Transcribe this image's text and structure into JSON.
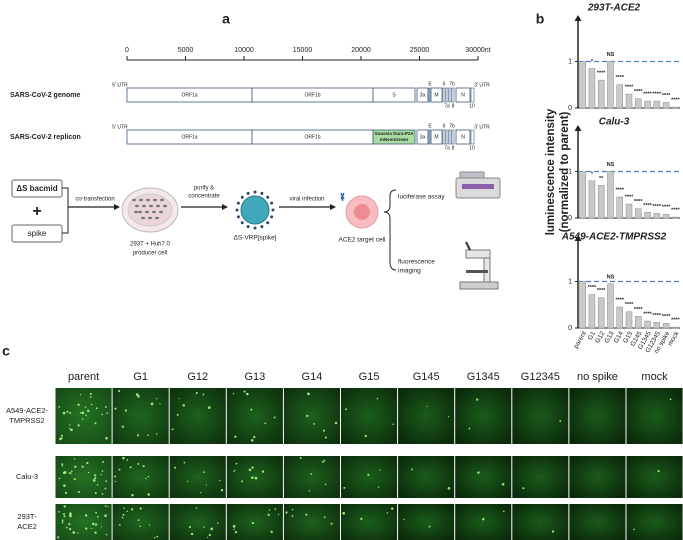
{
  "panel_labels": [
    "a",
    "b",
    "c"
  ],
  "genome": {
    "xlim": [
      0,
      30000
    ],
    "xticks": [
      0,
      5000,
      10000,
      15000,
      20000,
      25000,
      {
        "value": 30000,
        "label": "30000nt"
      }
    ],
    "utr5": "5' UTR",
    "utr3": "3' UTR",
    "rows": [
      {
        "label": "SARS-CoV-2 genome",
        "segments": [
          "ORF1a",
          "ORF1b",
          "S",
          "3a",
          "M",
          "N"
        ],
        "above": [
          "E",
          "6",
          "7b"
        ],
        "below": [
          "7a",
          "8",
          "10"
        ]
      },
      {
        "label": "SARS-CoV-2 replicon",
        "segments": [
          "ORF1a",
          "ORF1b",
          [
            "Gaussia Dura-P2A",
            "mNeonGreen"
          ],
          "3a",
          "M",
          "N"
        ],
        "above": [
          "E",
          "6",
          "7b"
        ],
        "below": [
          "7a",
          "8",
          "10"
        ]
      }
    ]
  },
  "workflow": {
    "bacmid": "ΔS bacmid",
    "plus": "+",
    "spike": "spike",
    "step1": "co-transfection",
    "producer": [
      "293T + Huh7.0",
      "producer cell"
    ],
    "step2": [
      "purify &",
      "concentrate"
    ],
    "vrp": "ΔS-VRP[spike]",
    "step3": "viral infection",
    "target": "ACE2 target cell",
    "assay1": "luciferase assay",
    "assay2": [
      "fluorescence",
      "imaging"
    ]
  },
  "shared_ylabel": [
    "luminescence intensity",
    "(normalized to parent)"
  ],
  "chart_data": [
    {
      "type": "bar",
      "title": "293T-ACE2",
      "color": "#c9c9c9",
      "values": [
        1.0,
        0.85,
        0.6,
        1.0,
        0.5,
        0.3,
        0.2,
        0.15,
        0.15,
        0.12,
        0.02
      ],
      "annotations": [
        null,
        "*",
        "****",
        "NS",
        "****",
        "****",
        "****",
        "****",
        "****",
        "****",
        "****"
      ],
      "reference_line": 1,
      "ylim": [
        0,
        2
      ],
      "yticks": [
        0,
        1
      ]
    },
    {
      "type": "bar",
      "title": "Calu-3",
      "color": "#c9c9c9",
      "values": [
        1.0,
        0.8,
        0.7,
        1.0,
        0.45,
        0.3,
        0.2,
        0.12,
        0.1,
        0.08,
        0.02
      ],
      "annotations": [
        null,
        "*",
        "**",
        "NS",
        "****",
        "****",
        "****",
        "****",
        "****",
        "****",
        "****"
      ],
      "reference_line": 1,
      "ylim": [
        0,
        2
      ],
      "yticks": [
        0,
        1
      ]
    },
    {
      "type": "bar",
      "title": "A549-ACE2-TMPRSS2",
      "color": "#c9c9c9",
      "categories": [
        "parent",
        "G1",
        "G12",
        "G13",
        "G14",
        "G15",
        "G145",
        "G1345",
        "G12345",
        "no spike",
        "mock"
      ],
      "values": [
        1.0,
        0.72,
        0.65,
        0.95,
        0.45,
        0.35,
        0.25,
        0.15,
        0.12,
        0.1,
        0.02
      ],
      "annotations": [
        null,
        "****",
        "****",
        "NS",
        "****",
        "****",
        "****",
        "****",
        "****",
        "****",
        "****"
      ],
      "reference_line": 1,
      "ylim": [
        0,
        2
      ],
      "yticks": [
        0,
        1
      ]
    }
  ],
  "micrographs": {
    "columns": [
      "parent",
      "G1",
      "G12",
      "G13",
      "G14",
      "G15",
      "G145",
      "G1345",
      "G12345",
      "no spike",
      "mock"
    ],
    "rows": [
      [
        "A549-ACE2-",
        "TMPRSS2"
      ],
      [
        "Calu-3"
      ],
      [
        "293T-",
        "ACE2"
      ]
    ]
  }
}
